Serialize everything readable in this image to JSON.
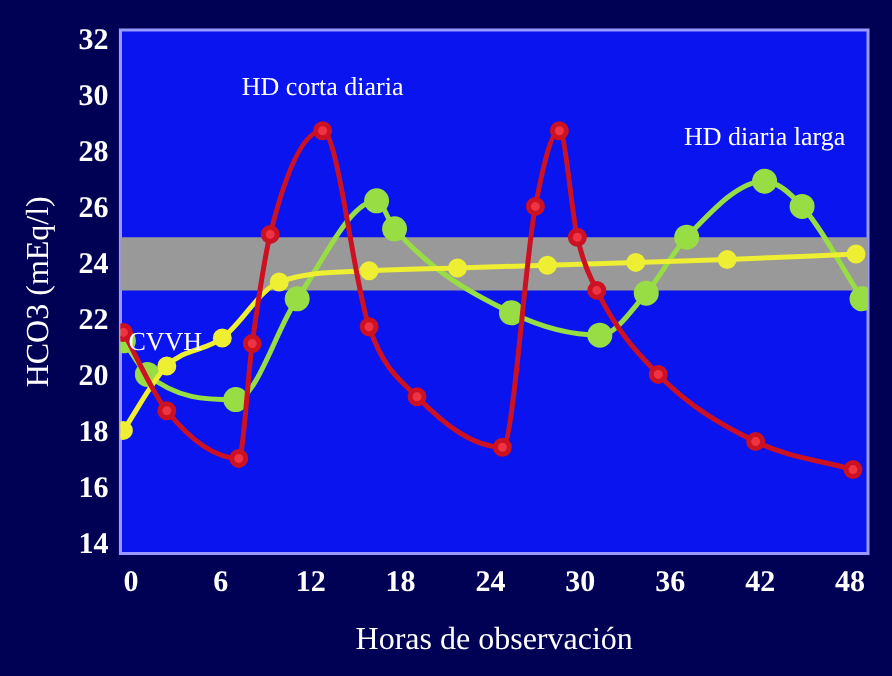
{
  "chart_data": {
    "type": "line",
    "xlabel": "Horas de observación",
    "ylabel": "HCO3 (mEq/l)",
    "xlim": [
      -0.7,
      49.2
    ],
    "xticks": [
      0,
      6,
      12,
      18,
      24,
      30,
      36,
      42,
      48
    ],
    "ylim": [
      13.7,
      32.4
    ],
    "yticks": [
      14,
      16,
      18,
      20,
      22,
      24,
      26,
      28,
      30,
      32
    ],
    "grid": false,
    "legend": false,
    "marker": "circle",
    "line_style": "solid",
    "bands": [
      {
        "axis": "y",
        "from": 23.1,
        "to": 25.0,
        "color": "#999999"
      }
    ],
    "series": [
      {
        "name": "HD corta diaria",
        "color": "#cc1122",
        "x": [
          -0.5,
          2.4,
          7.2,
          8.1,
          9.3,
          12.8,
          15.9,
          19.1,
          24.8,
          27.0,
          28.6,
          29.8,
          31.1,
          35.2,
          41.7,
          48.2
        ],
        "values": [
          21.6,
          18.8,
          17.1,
          21.2,
          25.1,
          28.8,
          21.8,
          19.3,
          17.5,
          26.1,
          28.8,
          25.0,
          23.1,
          20.1,
          17.7,
          16.7
        ]
      },
      {
        "name": "HD diaria larga",
        "color": "#99dd44",
        "x": [
          -0.5,
          1.1,
          7.0,
          11.1,
          16.4,
          17.6,
          25.4,
          31.3,
          34.4,
          37.1,
          42.3,
          44.8,
          48.8
        ],
        "values": [
          21.3,
          20.1,
          19.2,
          22.8,
          26.3,
          25.3,
          22.3,
          21.5,
          23.0,
          25.0,
          27.0,
          26.1,
          22.8
        ]
      },
      {
        "name": "CVVH",
        "color": "#eeee33",
        "x": [
          -0.5,
          2.4,
          6.1,
          9.9,
          15.9,
          21.8,
          27.8,
          33.7,
          39.8,
          48.4
        ],
        "values": [
          18.1,
          20.4,
          21.4,
          23.4,
          23.8,
          23.9,
          24.0,
          24.1,
          24.2,
          24.4
        ]
      }
    ]
  }
}
